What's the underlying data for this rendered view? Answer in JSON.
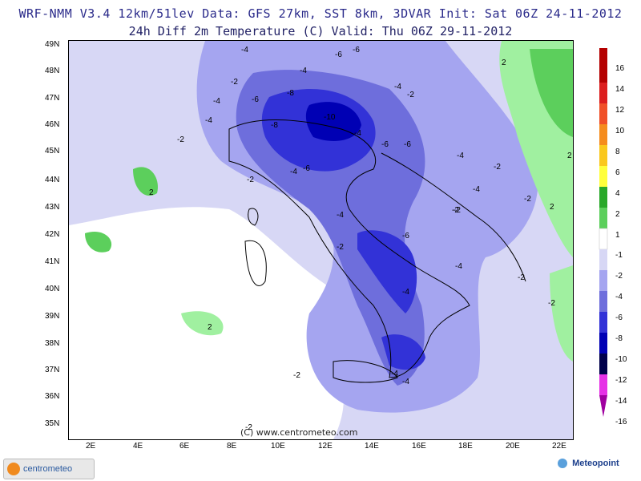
{
  "header": {
    "line1": "WRF-NMM V3.4 12km/51lev  Data: GFS 27km, SST 8km, 3DVAR  Init: Sat 06Z 24-11-2012",
    "line2": "24h Diff 2m Temperature (C)  Valid: Thu 06Z 29-11-2012"
  },
  "axes": {
    "y_ticks": [
      "49N",
      "48N",
      "47N",
      "46N",
      "45N",
      "44N",
      "43N",
      "42N",
      "41N",
      "40N",
      "39N",
      "38N",
      "37N",
      "36N",
      "35N"
    ],
    "x_ticks": [
      "2E",
      "4E",
      "6E",
      "8E",
      "10E",
      "12E",
      "14E",
      "16E",
      "18E",
      "20E",
      "22E"
    ]
  },
  "legend": {
    "labels": [
      "16",
      "14",
      "12",
      "10",
      "8",
      "6",
      "4",
      "2",
      "1",
      "-1",
      "-2",
      "-4",
      "-6",
      "-8",
      "-10",
      "-12",
      "-14",
      "-16"
    ],
    "colors": [
      "#b40000",
      "#dc1e1e",
      "#f05028",
      "#f58c1e",
      "#fac81e",
      "#ffff3c",
      "#29a829",
      "#5ccf5c",
      "#a0f0a0",
      "#ffffff",
      "#d7d7f5",
      "#a5a5f0",
      "#6e6edc",
      "#3232d7",
      "#0000b4",
      "#00004b",
      "#e632e6",
      "#a000a0"
    ]
  },
  "map_labels": [
    {
      "text": "-4"
    },
    {
      "text": "-6"
    },
    {
      "text": "-6"
    },
    {
      "text": "2"
    },
    {
      "text": "-4"
    },
    {
      "text": "-2"
    },
    {
      "text": "-4"
    },
    {
      "text": "-8"
    },
    {
      "text": "-4"
    },
    {
      "text": "-2"
    },
    {
      "text": "-6"
    },
    {
      "text": "-4"
    },
    {
      "text": "-8"
    },
    {
      "text": "-10"
    },
    {
      "text": "-4"
    },
    {
      "text": "-2"
    },
    {
      "text": "-6"
    },
    {
      "text": "-6"
    },
    {
      "text": "-4"
    },
    {
      "text": "2"
    },
    {
      "text": "-2"
    },
    {
      "text": "-2"
    },
    {
      "text": "-4"
    },
    {
      "text": "-6"
    },
    {
      "text": "2"
    },
    {
      "text": "-2"
    },
    {
      "text": "-4"
    },
    {
      "text": "-2"
    },
    {
      "text": "-4"
    },
    {
      "text": "-6"
    },
    {
      "text": "-2"
    },
    {
      "text": "2"
    },
    {
      "text": "-4"
    },
    {
      "text": "-2"
    },
    {
      "text": "-4"
    },
    {
      "text": "-2"
    },
    {
      "text": "-4"
    },
    {
      "text": "2"
    },
    {
      "text": "-2"
    },
    {
      "text": "-4"
    },
    {
      "text": "-2"
    },
    {
      "text": "-2"
    }
  ],
  "copyright": "(C) www.centrometeo.com",
  "logos": {
    "left": "centrometeo",
    "right": "Meteopoint"
  }
}
